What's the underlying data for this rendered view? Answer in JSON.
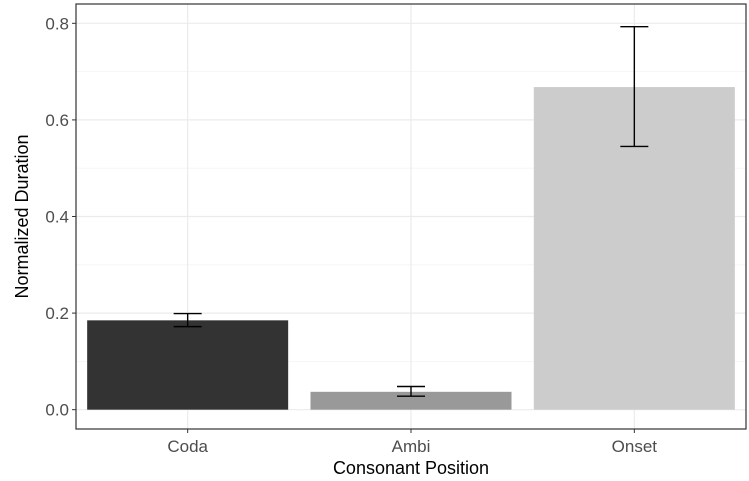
{
  "chart_data": {
    "type": "bar",
    "categories": [
      "Coda",
      "Ambi",
      "Onset"
    ],
    "values": [
      0.185,
      0.037,
      0.668
    ],
    "error_low": [
      0.172,
      0.028,
      0.545
    ],
    "error_high": [
      0.199,
      0.048,
      0.793
    ],
    "bar_colors": [
      "#333333",
      "#999999",
      "#cccccc"
    ],
    "xlabel": "Consonant Position",
    "ylabel": "Normalized Duration",
    "ylim": [
      -0.04,
      0.84
    ],
    "yticks": [
      0.0,
      0.2,
      0.4,
      0.6,
      0.8
    ],
    "ytick_labels": [
      "0.0",
      "0.2",
      "0.4",
      "0.6",
      "0.8"
    ],
    "grid": true
  }
}
